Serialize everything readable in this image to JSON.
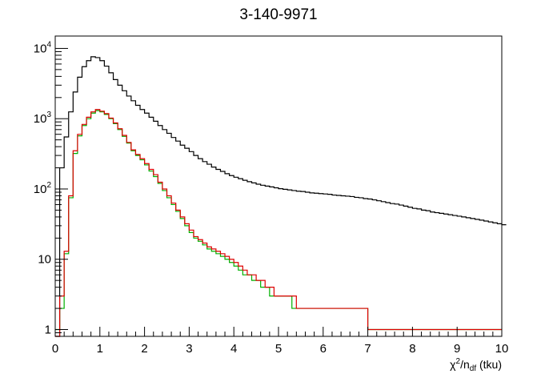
{
  "chart_data": {
    "type": "line",
    "title": "3-140-9971",
    "xlabel": {
      "base": "χ",
      "sup": "2",
      "mid": "/n",
      "sub": "df",
      "suffix": " (tku)"
    },
    "ylabel": "",
    "log_y": true,
    "xlim": [
      0,
      10
    ],
    "ylim": [
      0.8,
      15000
    ],
    "x_ticks": [
      0,
      1,
      2,
      3,
      4,
      5,
      6,
      7,
      8,
      9,
      10
    ],
    "x_tick_labels": [
      "0",
      "1",
      "2",
      "3",
      "4",
      "5",
      "6",
      "7",
      "8",
      "9",
      "10"
    ],
    "y_ticks": [
      1,
      10,
      100,
      1000,
      10000
    ],
    "y_tick_labels": [
      {
        "base": "1",
        "exp": ""
      },
      {
        "base": "10",
        "exp": ""
      },
      {
        "base": "10",
        "exp": "2"
      },
      {
        "base": "10",
        "exp": "3"
      },
      {
        "base": "10",
        "exp": "4"
      }
    ],
    "bin_width": 0.1,
    "grid": false,
    "legend": null,
    "series": [
      {
        "color": "#000000",
        "values": [
          0,
          200,
          550,
          1250,
          2400,
          3900,
          5500,
          6700,
          7600,
          7400,
          6700,
          5600,
          4500,
          3600,
          3000,
          2500,
          2100,
          1800,
          1550,
          1350,
          1200,
          1050,
          920,
          800,
          700,
          620,
          540,
          480,
          420,
          380,
          340,
          300,
          270,
          245,
          225,
          205,
          190,
          178,
          165,
          155,
          147,
          140,
          133,
          127,
          122,
          117,
          113,
          110,
          107,
          104,
          101,
          99,
          97,
          95,
          93,
          92,
          90,
          88,
          87,
          86,
          85,
          84,
          82,
          81,
          80,
          79,
          78,
          76,
          75,
          73,
          72,
          70,
          68,
          66,
          64,
          62,
          61,
          59,
          57,
          55,
          53,
          52,
          50,
          49,
          47,
          46,
          45,
          44,
          43,
          42,
          41,
          40,
          39,
          38,
          37,
          36,
          35,
          34,
          33,
          32,
          31
        ]
      },
      {
        "color": "#00b000",
        "values": [
          1,
          2,
          12,
          75,
          320,
          570,
          800,
          1000,
          1200,
          1300,
          1250,
          1150,
          1000,
          850,
          700,
          560,
          450,
          350,
          300,
          260,
          220,
          180,
          150,
          120,
          95,
          75,
          60,
          48,
          38,
          30,
          24,
          20,
          18,
          16,
          14,
          13,
          12,
          11,
          10,
          9,
          8,
          7,
          6,
          6,
          5,
          5,
          4,
          4,
          3,
          3,
          3,
          3,
          3,
          2,
          2,
          2,
          2,
          2,
          2,
          2,
          2,
          2,
          2,
          2,
          2,
          2,
          2,
          2,
          2,
          2,
          1,
          1,
          1,
          1,
          1,
          1,
          1,
          1,
          1,
          1,
          1,
          1,
          1,
          1,
          1,
          1,
          1,
          1,
          1,
          1,
          1,
          1,
          1,
          1,
          1,
          1,
          1,
          1,
          1,
          1
        ]
      },
      {
        "color": "#dd0000",
        "values": [
          0.5,
          3,
          13,
          80,
          350,
          600,
          830,
          1050,
          1250,
          1350,
          1280,
          1180,
          1020,
          870,
          720,
          580,
          460,
          360,
          310,
          270,
          230,
          190,
          160,
          125,
          100,
          80,
          63,
          50,
          40,
          32,
          26,
          21,
          19,
          17,
          15,
          14,
          13,
          12,
          11,
          10,
          9,
          8,
          7,
          6,
          6,
          5,
          5,
          4,
          4,
          3,
          3,
          3,
          3,
          3,
          2,
          2,
          2,
          2,
          2,
          2,
          2,
          2,
          2,
          2,
          2,
          2,
          2,
          2,
          2,
          2,
          1,
          1,
          1,
          1,
          1,
          1,
          1,
          1,
          1,
          1,
          1,
          1,
          1,
          1,
          1,
          1,
          1,
          1,
          1,
          1,
          1,
          1,
          1,
          1,
          1,
          1,
          1,
          1,
          1,
          1
        ]
      }
    ]
  }
}
